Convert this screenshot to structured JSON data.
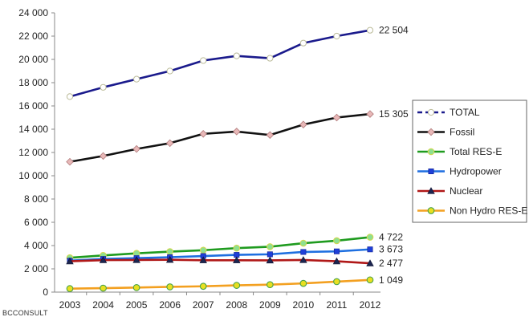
{
  "chart_data": {
    "type": "line",
    "categories": [
      "2003",
      "2004",
      "2005",
      "2006",
      "2007",
      "2008",
      "2009",
      "2010",
      "2011",
      "2012"
    ],
    "ylim": [
      0,
      24000
    ],
    "yticks": [
      "0",
      "2 000",
      "4 000",
      "6 000",
      "8 000",
      "10 000",
      "12 000",
      "14 000",
      "16 000",
      "18 000",
      "20 000",
      "22 000",
      "24 000"
    ],
    "ytick_values": [
      0,
      2000,
      4000,
      6000,
      8000,
      10000,
      12000,
      14000,
      16000,
      18000,
      20000,
      22000,
      24000
    ],
    "grid": false,
    "legend_position": "right",
    "series": [
      {
        "name": "TOTAL",
        "color": "#1a1a8c",
        "line_style": "dashed",
        "marker": "circle-open",
        "values": [
          16800,
          17600,
          18300,
          19000,
          19900,
          20300,
          20100,
          21400,
          22000,
          22504
        ],
        "end_label": "22 504"
      },
      {
        "name": "Fossil",
        "color": "#111111",
        "line_style": "solid",
        "marker": "diamond",
        "values": [
          11200,
          11700,
          12300,
          12800,
          13600,
          13800,
          13500,
          14400,
          15000,
          15305
        ],
        "end_label": "15 305"
      },
      {
        "name": "Total RES-E",
        "color": "#1f9b1f",
        "line_style": "solid",
        "marker": "circle-green",
        "values": [
          2950,
          3150,
          3330,
          3480,
          3600,
          3780,
          3900,
          4200,
          4420,
          4722
        ],
        "end_label": "4 722"
      },
      {
        "name": "Hydropower",
        "color": "#1e6fe0",
        "line_style": "solid",
        "marker": "square",
        "values": [
          2700,
          2850,
          2920,
          3000,
          3100,
          3200,
          3250,
          3450,
          3500,
          3673
        ],
        "end_label": "3 673"
      },
      {
        "name": "Nuclear",
        "color": "#b01818",
        "line_style": "solid",
        "marker": "triangle",
        "values": [
          2650,
          2750,
          2760,
          2780,
          2740,
          2740,
          2730,
          2760,
          2650,
          2477
        ],
        "end_label": "2 477"
      },
      {
        "name": "Non Hydro RES-E",
        "color": "#f3a020",
        "line_style": "solid",
        "marker": "circle-yellow",
        "values": [
          300,
          340,
          390,
          450,
          500,
          580,
          640,
          750,
          900,
          1049
        ],
        "end_label": "1 049"
      }
    ]
  },
  "credit": "BCCONSULT"
}
